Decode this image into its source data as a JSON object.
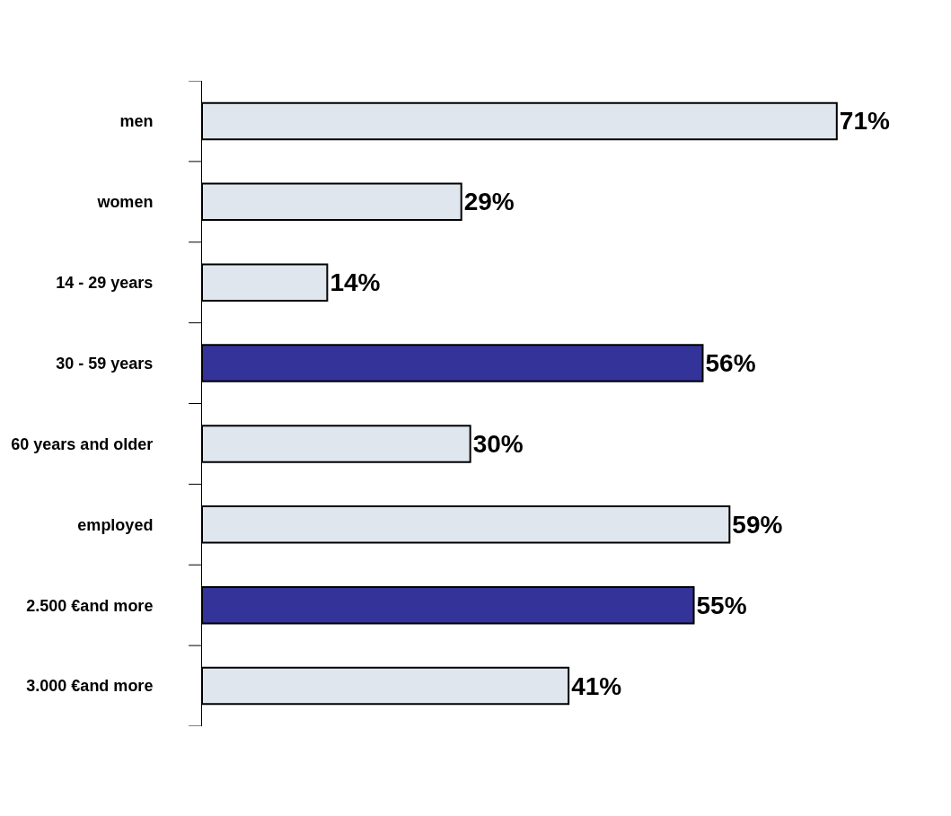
{
  "chart_data": {
    "type": "bar",
    "orientation": "horizontal",
    "categories": [
      "men",
      "women",
      "14 - 29 years",
      "30 - 59 years",
      "60 years and older",
      "employed",
      "2.500 €and more",
      "3.000 €and more"
    ],
    "values": [
      71,
      29,
      14,
      56,
      30,
      59,
      55,
      41
    ],
    "colors": [
      "#dfe6ee",
      "#dfe6ee",
      "#dfe6ee",
      "#333399",
      "#dfe6ee",
      "#dfe6ee",
      "#333399",
      "#dfe6ee"
    ],
    "value_labels": [
      "71%",
      "29%",
      "14%",
      "56%",
      "30%",
      "59%",
      "55%",
      "41%"
    ],
    "legend": false
  }
}
